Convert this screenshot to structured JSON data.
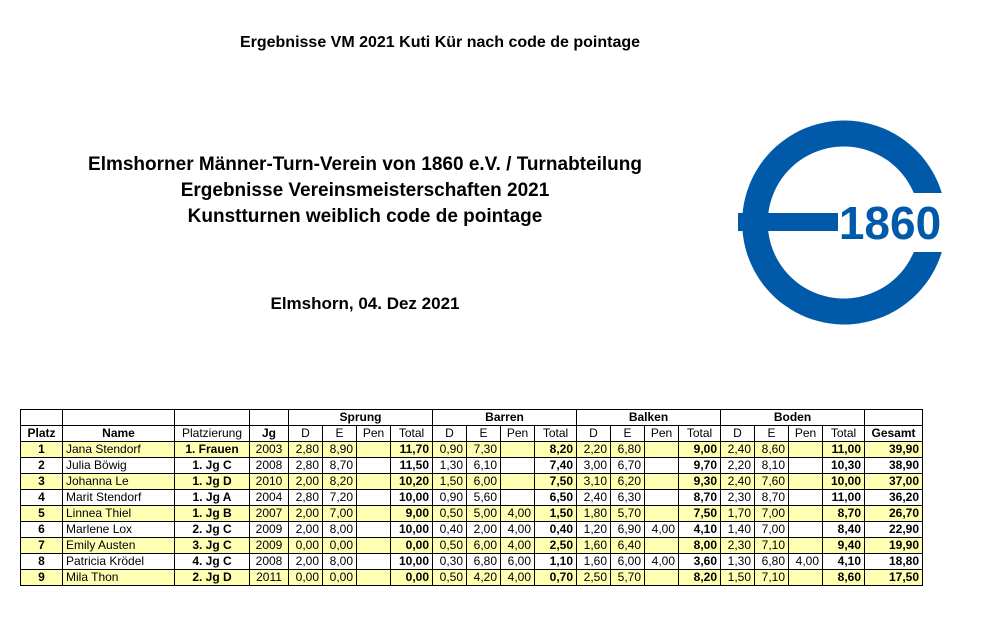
{
  "header": {
    "title": "Ergebnisse VM 2021 Kuti Kür nach code de pointage",
    "club_line": "Elmshorner Männer-Turn-Verein von 1860 e.V. / Turnabteilung",
    "subtitle_1": "Ergebnisse Vereinsmeisterschaften 2021",
    "subtitle_2": "Kunstturnen weiblich code de pointage",
    "place_date": "Elmshorn, 04. Dez 2021"
  },
  "logo": {
    "text": "1860",
    "color": "#005aa9"
  },
  "table": {
    "columns": {
      "platz": "Platz",
      "name": "Name",
      "platzierung": "Platzierung",
      "jg": "Jg",
      "gesamt": "Gesamt",
      "sub": [
        "D",
        "E",
        "Pen",
        "Total"
      ]
    },
    "apparatus": [
      "Sprung",
      "Barren",
      "Balken",
      "Boden"
    ],
    "highlight_color": "#ffffb4",
    "rows": [
      {
        "platz": "1",
        "name": "Jana Stendorf",
        "platzierung": "1. Frauen",
        "jg": "2003",
        "sprung": [
          "2,80",
          "8,90",
          "",
          "11,70"
        ],
        "barren": [
          "0,90",
          "7,30",
          "",
          "8,20"
        ],
        "balken": [
          "2,20",
          "6,80",
          "",
          "9,00"
        ],
        "boden": [
          "2,40",
          "8,60",
          "",
          "11,00"
        ],
        "gesamt": "39,90"
      },
      {
        "platz": "2",
        "name": "Julia Böwig",
        "platzierung": "1. Jg C",
        "jg": "2008",
        "sprung": [
          "2,80",
          "8,70",
          "",
          "11,50"
        ],
        "barren": [
          "1,30",
          "6,10",
          "",
          "7,40"
        ],
        "balken": [
          "3,00",
          "6,70",
          "",
          "9,70"
        ],
        "boden": [
          "2,20",
          "8,10",
          "",
          "10,30"
        ],
        "gesamt": "38,90"
      },
      {
        "platz": "3",
        "name": "Johanna Le",
        "platzierung": "1. Jg D",
        "jg": "2010",
        "sprung": [
          "2,00",
          "8,20",
          "",
          "10,20"
        ],
        "barren": [
          "1,50",
          "6,00",
          "",
          "7,50"
        ],
        "balken": [
          "3,10",
          "6,20",
          "",
          "9,30"
        ],
        "boden": [
          "2,40",
          "7,60",
          "",
          "10,00"
        ],
        "gesamt": "37,00"
      },
      {
        "platz": "4",
        "name": "Marit Stendorf",
        "platzierung": "1. Jg A",
        "jg": "2004",
        "sprung": [
          "2,80",
          "7,20",
          "",
          "10,00"
        ],
        "barren": [
          "0,90",
          "5,60",
          "",
          "6,50"
        ],
        "balken": [
          "2,40",
          "6,30",
          "",
          "8,70"
        ],
        "boden": [
          "2,30",
          "8,70",
          "",
          "11,00"
        ],
        "gesamt": "36,20"
      },
      {
        "platz": "5",
        "name": "Linnea Thiel",
        "platzierung": "1. Jg B",
        "jg": "2007",
        "sprung": [
          "2,00",
          "7,00",
          "",
          "9,00"
        ],
        "barren": [
          "0,50",
          "5,00",
          "4,00",
          "1,50"
        ],
        "balken": [
          "1,80",
          "5,70",
          "",
          "7,50"
        ],
        "boden": [
          "1,70",
          "7,00",
          "",
          "8,70"
        ],
        "gesamt": "26,70"
      },
      {
        "platz": "6",
        "name": "Marlene Lox",
        "platzierung": "2. Jg C",
        "jg": "2009",
        "sprung": [
          "2,00",
          "8,00",
          "",
          "10,00"
        ],
        "barren": [
          "0,40",
          "2,00",
          "4,00",
          "0,40"
        ],
        "balken": [
          "1,20",
          "6,90",
          "4,00",
          "4,10"
        ],
        "boden": [
          "1,40",
          "7,00",
          "",
          "8,40"
        ],
        "gesamt": "22,90"
      },
      {
        "platz": "7",
        "name": "Emily Austen",
        "platzierung": "3. Jg C",
        "jg": "2009",
        "sprung": [
          "0,00",
          "0,00",
          "",
          "0,00"
        ],
        "barren": [
          "0,50",
          "6,00",
          "4,00",
          "2,50"
        ],
        "balken": [
          "1,60",
          "6,40",
          "",
          "8,00"
        ],
        "boden": [
          "2,30",
          "7,10",
          "",
          "9,40"
        ],
        "gesamt": "19,90"
      },
      {
        "platz": "8",
        "name": "Patricia Krödel",
        "platzierung": "4. Jg C",
        "jg": "2008",
        "sprung": [
          "2,00",
          "8,00",
          "",
          "10,00"
        ],
        "barren": [
          "0,30",
          "6,80",
          "6,00",
          "1,10"
        ],
        "balken": [
          "1,60",
          "6,00",
          "4,00",
          "3,60"
        ],
        "boden": [
          "1,30",
          "6,80",
          "4,00",
          "4,10"
        ],
        "gesamt": "18,80"
      },
      {
        "platz": "9",
        "name": "Mila Thon",
        "platzierung": "2. Jg D",
        "jg": "2011",
        "sprung": [
          "0,00",
          "0,00",
          "",
          "0,00"
        ],
        "barren": [
          "0,50",
          "4,20",
          "4,00",
          "0,70"
        ],
        "balken": [
          "2,50",
          "5,70",
          "",
          "8,20"
        ],
        "boden": [
          "1,50",
          "7,10",
          "",
          "8,60"
        ],
        "gesamt": "17,50"
      }
    ]
  }
}
